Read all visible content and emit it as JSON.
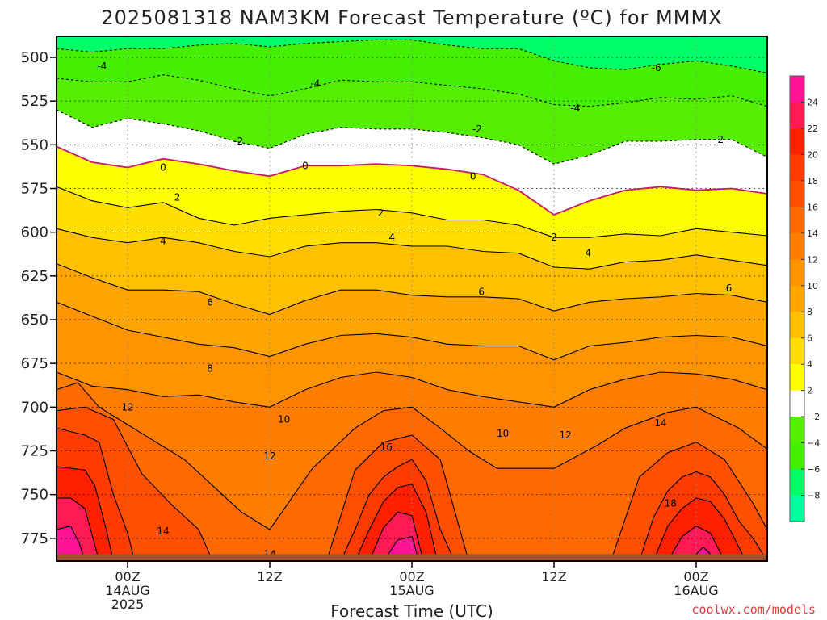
{
  "chart_data": {
    "type": "contour",
    "title": "2025081318 NAM3KM Forecast Temperature (ºC) for MMMX",
    "xlabel": "Forecast Time (UTC)",
    "ylabel": "",
    "credit": "coolwx.com/models",
    "y_axis": {
      "units": "hPa",
      "inverted": true,
      "range": [
        488,
        788
      ],
      "ticks": [
        500,
        525,
        550,
        575,
        600,
        625,
        650,
        675,
        700,
        725,
        750,
        775
      ]
    },
    "x_axis": {
      "range_hours": [
        -5,
        45
      ],
      "ticks": [
        {
          "hour": 0,
          "label": "00Z",
          "sub1": "14AUG",
          "sub2": "2025"
        },
        {
          "hour": 10,
          "label": "12Z",
          "sub1": "",
          "sub2": ""
        },
        {
          "hour": 20,
          "label": "00Z",
          "sub1": "15AUG",
          "sub2": ""
        },
        {
          "hour": 30,
          "label": "12Z",
          "sub1": "",
          "sub2": ""
        },
        {
          "hour": 40,
          "label": "00Z",
          "sub1": "16AUG",
          "sub2": ""
        }
      ]
    },
    "grid": true,
    "levels": [
      -10,
      -8,
      -6,
      -4,
      -2,
      0,
      2,
      4,
      6,
      8,
      10,
      12,
      14,
      16,
      18,
      20,
      22,
      24,
      26
    ],
    "colorbar": {
      "labels": [
        "24",
        "22",
        "20",
        "18",
        "16",
        "14",
        "12",
        "10",
        "8",
        "6",
        "4",
        "2",
        "−2",
        "−4",
        "−6",
        "−8"
      ],
      "colors": [
        "#ff1493",
        "#ff1a55",
        "#ff2000",
        "#ff3c00",
        "#ff5000",
        "#ff6a00",
        "#ff7e00",
        "#ff9300",
        "#ffa500",
        "#ffc000",
        "#ffde00",
        "#ffff00",
        "#ffffff",
        "#55ee00",
        "#44f000",
        "#00ff66",
        "#00ff9f"
      ]
    },
    "x_hours": [
      -5,
      -2.5,
      0,
      2.5,
      5,
      7.5,
      10,
      12.5,
      15,
      17.5,
      20,
      22.5,
      25,
      27.5,
      30,
      32.5,
      35,
      37.5,
      40,
      42.5,
      45
    ],
    "isotherms": [
      {
        "t": -6,
        "p": [
          495,
          497,
          495,
          495,
          493,
          492,
          494,
          492,
          491,
          490,
          490,
          493,
          495,
          495,
          502,
          506,
          507,
          504,
          502,
          505,
          509
        ]
      },
      {
        "t": -4,
        "p": [
          512,
          514,
          514,
          510,
          513,
          518,
          522,
          518,
          513,
          514,
          514,
          516,
          518,
          521,
          527,
          528,
          526,
          523,
          524,
          522,
          528
        ]
      },
      {
        "t": -2,
        "p": [
          530,
          540,
          535,
          538,
          542,
          548,
          552,
          544,
          540,
          541,
          541,
          543,
          546,
          550,
          561,
          556,
          548,
          548,
          547,
          547,
          557
        ]
      },
      {
        "t": 0,
        "p": [
          551,
          560,
          563,
          558,
          561,
          565,
          568,
          562,
          562,
          561,
          562,
          564,
          567,
          576,
          590,
          582,
          576,
          574,
          576,
          575,
          578
        ]
      },
      {
        "t": 2,
        "p": [
          574,
          582,
          586,
          583,
          592,
          596,
          592,
          590,
          588,
          587,
          589,
          593,
          593,
          596,
          603,
          603,
          601,
          602,
          598,
          600,
          602
        ]
      },
      {
        "t": 4,
        "p": [
          598,
          603,
          606,
          603,
          606,
          611,
          614,
          608,
          606,
          606,
          608,
          608,
          611,
          612,
          620,
          621,
          617,
          616,
          613,
          616,
          619
        ]
      },
      {
        "t": 6,
        "p": [
          618,
          626,
          633,
          633,
          634,
          641,
          647,
          639,
          633,
          633,
          636,
          637,
          637,
          638,
          645,
          640,
          638,
          637,
          635,
          636,
          640
        ]
      },
      {
        "t": 8,
        "p": [
          640,
          648,
          656,
          660,
          664,
          666,
          671,
          664,
          659,
          658,
          660,
          664,
          665,
          665,
          673,
          665,
          663,
          660,
          659,
          660,
          665
        ]
      },
      {
        "t": 10,
        "p": [
          680,
          688,
          690,
          694,
          693,
          697,
          700,
          690,
          683,
          680,
          683,
          690,
          694,
          697,
          700,
          690,
          684,
          680,
          681,
          684,
          690
        ]
      }
    ],
    "warm_tongues": [
      {
        "t": 12,
        "hours": [
          -5,
          -3.5,
          -2,
          0,
          2,
          4,
          6,
          8,
          10,
          10,
          13,
          16,
          18,
          20,
          22,
          24,
          26,
          30,
          33,
          35,
          38,
          40,
          43,
          45
        ],
        "p": [
          690,
          686,
          700,
          710,
          720,
          730,
          745,
          760,
          770,
          770,
          735,
          712,
          702,
          700,
          712,
          725,
          735,
          735,
          722,
          712,
          703,
          700,
          712,
          724
        ]
      },
      {
        "t": 14,
        "hours": [
          -5,
          -3,
          -1,
          1,
          3,
          5,
          6,
          14,
          16,
          18,
          20,
          22,
          24,
          34,
          36,
          38,
          40,
          42,
          44,
          45
        ],
        "p": [
          702,
          700,
          707,
          738,
          755,
          770,
          788,
          788,
          736,
          720,
          716,
          730,
          788,
          788,
          740,
          726,
          720,
          730,
          755,
          770
        ]
      },
      {
        "t": 16,
        "hours": [
          -5,
          -3,
          -2,
          -1,
          0,
          0.5,
          15,
          16,
          17,
          18,
          19,
          20,
          21,
          22,
          23,
          36,
          37,
          38,
          39,
          40,
          41,
          42,
          43,
          44,
          45
        ],
        "p": [
          712,
          716,
          720,
          750,
          772,
          788,
          788,
          770,
          750,
          740,
          734,
          730,
          742,
          770,
          788,
          788,
          763,
          748,
          740,
          737,
          740,
          750,
          765,
          775,
          788
        ]
      },
      {
        "t": 18,
        "hours": [
          -5,
          -3,
          -2.3,
          -1.5,
          -1.0,
          16,
          17,
          18,
          19,
          20,
          21,
          21.8,
          37,
          38,
          39,
          40,
          41,
          42,
          43.5
        ],
        "p": [
          734,
          736,
          745,
          770,
          788,
          788,
          770,
          754,
          746,
          744,
          760,
          788,
          788,
          768,
          758,
          752,
          754,
          764,
          788
        ]
      },
      {
        "t": 20,
        "hours": [
          -5,
          -4,
          -3,
          -2.4,
          -2.0,
          17,
          18,
          19,
          20,
          20.8,
          38,
          39,
          40,
          41,
          42
        ],
        "p": [
          752,
          752,
          758,
          776,
          788,
          788,
          769,
          760,
          762,
          788,
          788,
          774,
          768,
          772,
          788
        ]
      },
      {
        "t": 22,
        "hours": [
          -5,
          -4,
          -3.4,
          -3.0,
          18,
          19,
          20,
          20.5,
          39.5,
          40.5,
          41.5
        ],
        "p": [
          770,
          768,
          778,
          788,
          788,
          776,
          774,
          788,
          788,
          780,
          788
        ]
      }
    ],
    "contour_labels": [
      {
        "text": "-4",
        "h": -1.8,
        "p": 505
      },
      {
        "text": "-4",
        "h": 13.2,
        "p": 515
      },
      {
        "text": "-6",
        "h": 37.2,
        "p": 506
      },
      {
        "text": "-4",
        "h": 31.5,
        "p": 529
      },
      {
        "text": "-2",
        "h": 7.8,
        "p": 548
      },
      {
        "text": "-2",
        "h": 24.6,
        "p": 541
      },
      {
        "text": "-2",
        "h": 41.6,
        "p": 547
      },
      {
        "text": "0",
        "h": 2.5,
        "p": 563
      },
      {
        "text": "0",
        "h": 12.5,
        "p": 562
      },
      {
        "text": "0",
        "h": 24.3,
        "p": 568
      },
      {
        "text": "2",
        "h": 3.5,
        "p": 580
      },
      {
        "text": "2",
        "h": 17.8,
        "p": 589
      },
      {
        "text": "2",
        "h": 30.0,
        "p": 603
      },
      {
        "text": "4",
        "h": 2.5,
        "p": 605
      },
      {
        "text": "4",
        "h": 18.6,
        "p": 603
      },
      {
        "text": "4",
        "h": 32.4,
        "p": 612
      },
      {
        "text": "6",
        "h": 5.8,
        "p": 640
      },
      {
        "text": "6",
        "h": 24.9,
        "p": 634
      },
      {
        "text": "6",
        "h": 42.3,
        "p": 632
      },
      {
        "text": "8",
        "h": 5.8,
        "p": 678
      },
      {
        "text": "10",
        "h": 11.0,
        "p": 707
      },
      {
        "text": "10",
        "h": 26.4,
        "p": 715
      },
      {
        "text": "12",
        "h": 0.0,
        "p": 700
      },
      {
        "text": "12",
        "h": 10.0,
        "p": 728
      },
      {
        "text": "12",
        "h": 30.8,
        "p": 716
      },
      {
        "text": "14",
        "h": 2.5,
        "p": 771
      },
      {
        "text": "14",
        "h": 10.0,
        "p": 784
      },
      {
        "text": "14",
        "h": 37.5,
        "p": 709
      },
      {
        "text": "16",
        "h": 18.2,
        "p": 723
      },
      {
        "text": "18",
        "h": 38.2,
        "p": 755
      }
    ],
    "terrain": {
      "p": 784,
      "color": "#a0522d"
    }
  }
}
